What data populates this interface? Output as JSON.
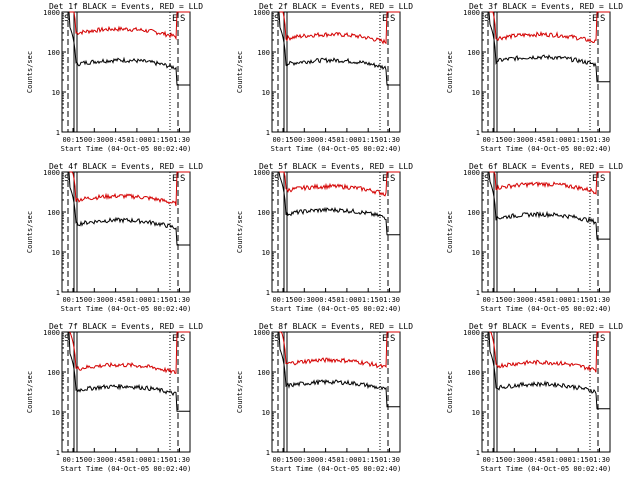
{
  "chart_data": {
    "type": "line",
    "scale": "log",
    "ylim": [
      1,
      1000
    ],
    "ytick_labels": [
      "1",
      "10",
      "100",
      "1000"
    ],
    "xtick_labels": [
      "00:15",
      "00:30",
      "00:45",
      "01:00",
      "01:15",
      "01:30"
    ],
    "xlabel": "Start Time (04-Oct-05 00:02:40)",
    "ylabel": "Counts/sec",
    "series_legend": {
      "black": "Events",
      "red": "LLD"
    },
    "colors": {
      "events": "#000000",
      "lld": "#d40000",
      "axes": "#000000"
    },
    "marker_labels": {
      "start": "S",
      "end": "E"
    },
    "panels": [
      {
        "title": "Det 1f BLACK = Events, RED = LLD",
        "events_level": 50,
        "lld_level": 300
      },
      {
        "title": "Det 2f BLACK = Events, RED = LLD",
        "events_level": 50,
        "lld_level": 220
      },
      {
        "title": "Det 3f BLACK = Events, RED = LLD",
        "events_level": 60,
        "lld_level": 220
      },
      {
        "title": "Det 4f BLACK = Events, RED = LLD",
        "events_level": 50,
        "lld_level": 200
      },
      {
        "title": "Det 5f BLACK = Events, RED = LLD",
        "events_level": 90,
        "lld_level": 350
      },
      {
        "title": "Det 6f BLACK = Events, RED = LLD",
        "events_level": 70,
        "lld_level": 400
      },
      {
        "title": "Det 7f BLACK = Events, RED = LLD",
        "events_level": 35,
        "lld_level": 120
      },
      {
        "title": "Det 8f BLACK = Events, RED = LLD",
        "events_level": 45,
        "lld_level": 160
      },
      {
        "title": "Det 9f BLACK = Events, RED = LLD",
        "events_level": 40,
        "lld_level": 140
      }
    ]
  }
}
